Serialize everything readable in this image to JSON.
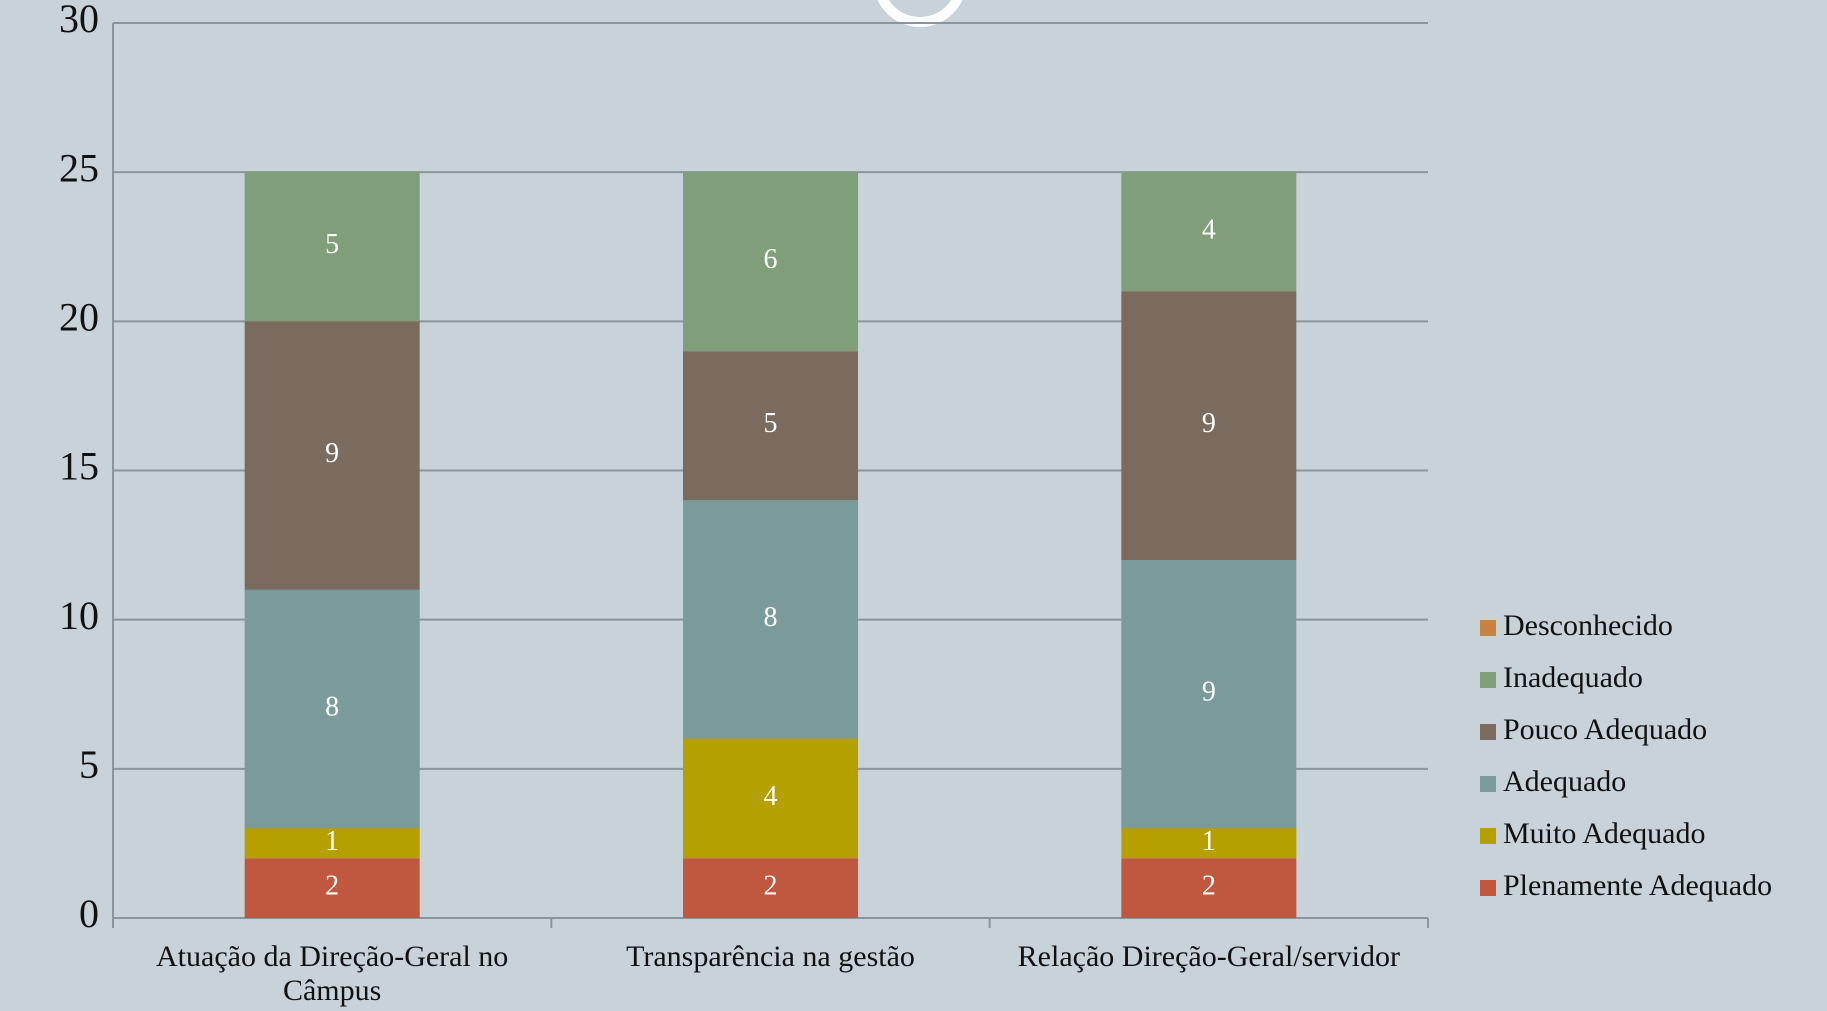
{
  "chart_data": {
    "type": "bar",
    "stacked": true,
    "categories": [
      "Atuação da Direção-Geral no Câmpus",
      "Transparência na gestão",
      "Relação Direção-Geral/servidor"
    ],
    "series": [
      {
        "name": "Plenamente Adequado",
        "color": "#c0573f",
        "values": [
          2,
          2,
          2
        ]
      },
      {
        "name": "Muito Adequado",
        "color": "#b5a000",
        "values": [
          1,
          4,
          1
        ]
      },
      {
        "name": "Adequado",
        "color": "#7b9a9b",
        "values": [
          8,
          8,
          9
        ]
      },
      {
        "name": "Pouco Adequado",
        "color": "#7a6b5e",
        "values": [
          9,
          5,
          9
        ]
      },
      {
        "name": "Inadequado",
        "color": "#819e7a",
        "values": [
          5,
          6,
          4
        ]
      },
      {
        "name": "Desconhecido",
        "color": "#c8823f",
        "values": [
          0,
          0,
          0
        ]
      }
    ],
    "ylim": [
      0,
      30
    ],
    "yticks": [
      0,
      5,
      10,
      15,
      20,
      25,
      30
    ],
    "grid": true,
    "legend": "right"
  }
}
